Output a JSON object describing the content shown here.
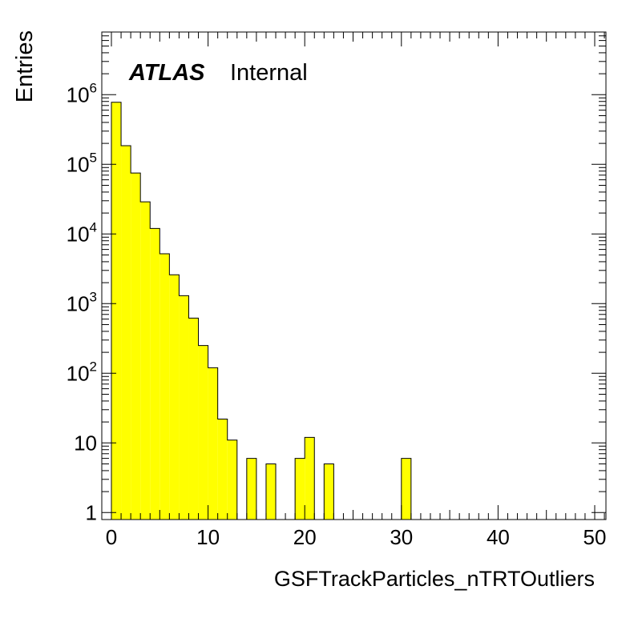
{
  "chart_data": {
    "type": "bar",
    "histogram": true,
    "xlabel": "GSFTrackParticles_nTRTOutliers",
    "ylabel": "Entries",
    "xlim": [
      0,
      51
    ],
    "ylim_log10": [
      -0.1,
      6.9
    ],
    "yscale": "log",
    "grid": false,
    "fill_color": "#ffff00",
    "edge_color": "#000000",
    "bin_width": 1,
    "atlas_label": "ATLAS",
    "atlas_status": "Internal",
    "x_ticks": [
      0,
      10,
      20,
      30,
      40,
      50
    ],
    "y_ticks": [
      {
        "value": 1,
        "base": "1",
        "exp": ""
      },
      {
        "value": 10,
        "base": "10",
        "exp": ""
      },
      {
        "value": 100,
        "base": "10",
        "exp": "2"
      },
      {
        "value": 1000,
        "base": "10",
        "exp": "3"
      },
      {
        "value": 10000,
        "base": "10",
        "exp": "4"
      },
      {
        "value": 100000,
        "base": "10",
        "exp": "5"
      },
      {
        "value": 1000000,
        "base": "10",
        "exp": "6"
      }
    ],
    "bins": [
      {
        "x": 0,
        "y": 780000
      },
      {
        "x": 1,
        "y": 185000
      },
      {
        "x": 2,
        "y": 75000
      },
      {
        "x": 3,
        "y": 29000
      },
      {
        "x": 4,
        "y": 12000
      },
      {
        "x": 5,
        "y": 5200
      },
      {
        "x": 6,
        "y": 2600
      },
      {
        "x": 7,
        "y": 1300
      },
      {
        "x": 8,
        "y": 620
      },
      {
        "x": 9,
        "y": 250
      },
      {
        "x": 10,
        "y": 120
      },
      {
        "x": 11,
        "y": 22
      },
      {
        "x": 12,
        "y": 11
      },
      {
        "x": 14,
        "y": 6
      },
      {
        "x": 16,
        "y": 5
      },
      {
        "x": 19,
        "y": 6
      },
      {
        "x": 20,
        "y": 12
      },
      {
        "x": 22,
        "y": 5
      },
      {
        "x": 30,
        "y": 6
      }
    ]
  }
}
